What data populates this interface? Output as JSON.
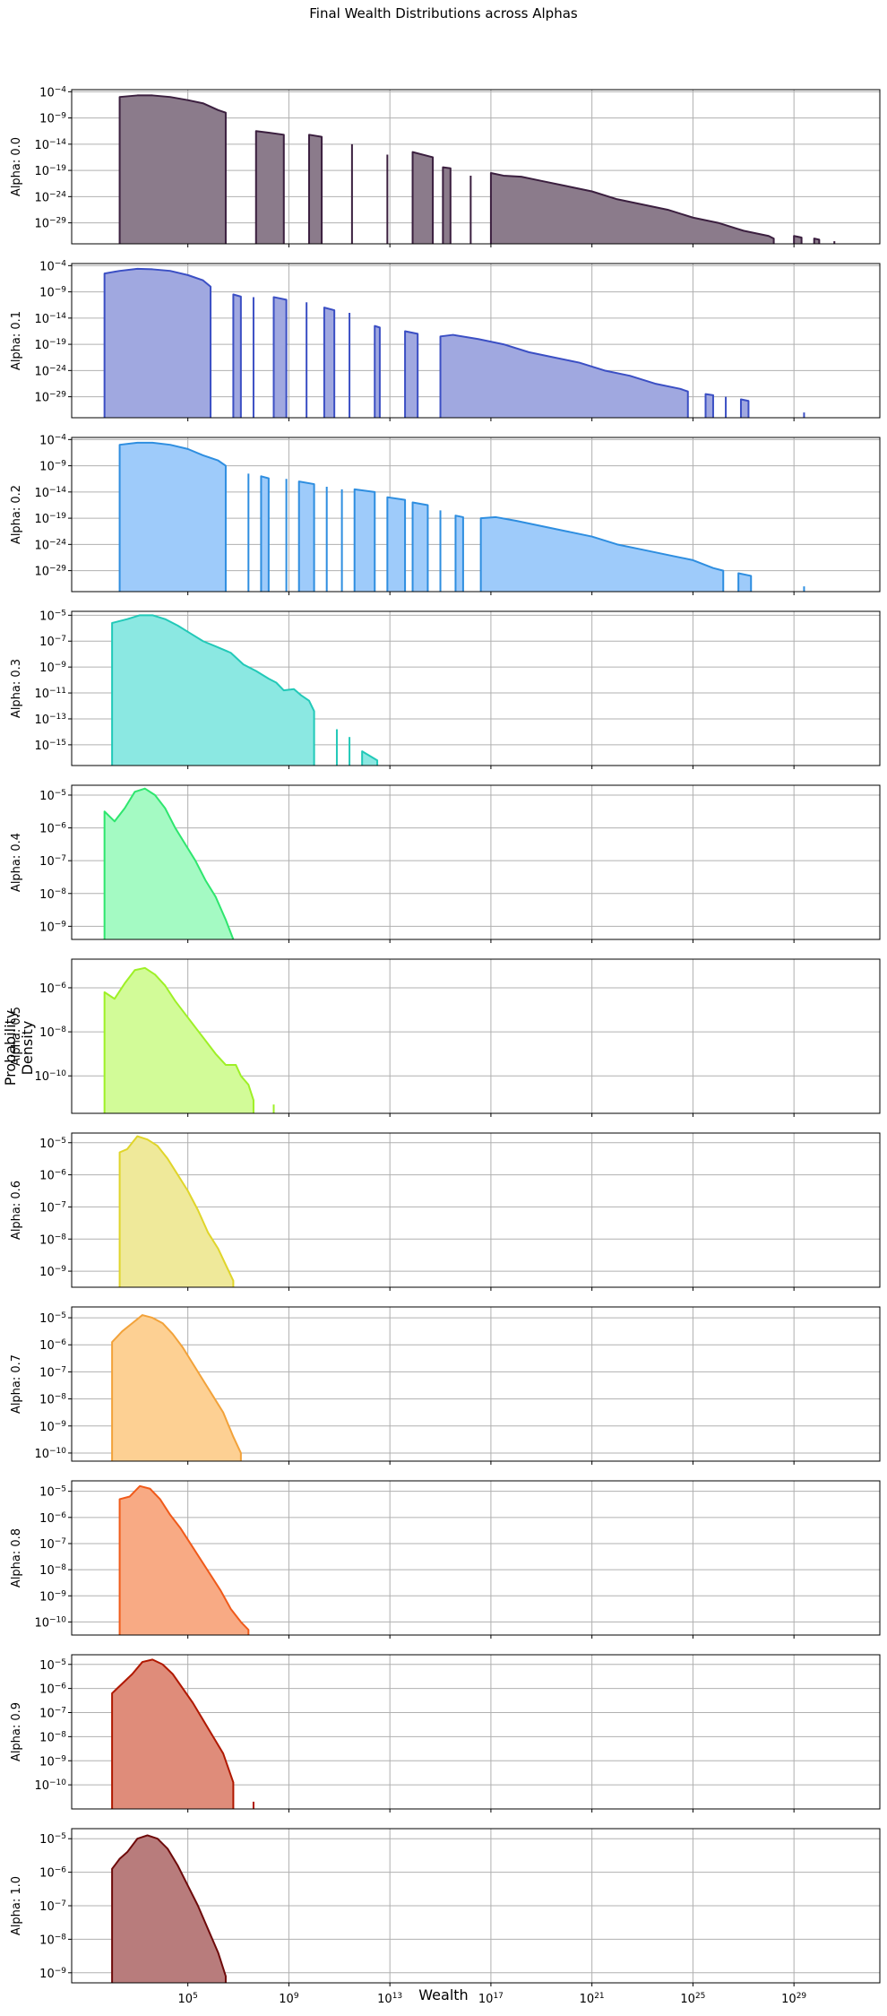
{
  "figure": {
    "title": "Final Wealth Distributions across Alphas",
    "xlabel": "Wealth",
    "ylabel": "Probability Density"
  },
  "chart_data": {
    "type": "area",
    "x_scale": "log",
    "y_scale": "log",
    "grid": true,
    "xlim_log10": [
      0.4,
      32.4
    ],
    "x_ticks": [
      {
        "exp": 5,
        "label": "10^5"
      },
      {
        "exp": 9,
        "label": "10^9"
      },
      {
        "exp": 13,
        "label": "10^13"
      },
      {
        "exp": 17,
        "label": "10^17"
      },
      {
        "exp": 21,
        "label": "10^21"
      },
      {
        "exp": 25,
        "label": "10^25"
      },
      {
        "exp": 29,
        "label": "10^29"
      }
    ],
    "panels": [
      {
        "label": "Alphα: 0.0",
        "ylabel": "Alpha: 0.0",
        "color": "#3b1f3f",
        "fill": "#8b7b8b",
        "ylim_log10": [
          -33,
          -3.6
        ],
        "y_ticks": [
          -4,
          -9,
          -14,
          -19,
          -24,
          -29
        ],
        "segments": [
          {
            "x": [
              2.3,
              3.0,
              3.6,
              4.3,
              5.0,
              5.6,
              6.2,
              6.5
            ],
            "y": [
              -5.0,
              -4.7,
              -4.7,
              -5.0,
              -5.6,
              -6.2,
              -7.5,
              -8.0
            ]
          },
          {
            "x": [
              7.7,
              8.2,
              8.8
            ],
            "y": [
              -11.5,
              -11.8,
              -12.2
            ]
          },
          {
            "x": [
              9.8,
              10.3
            ],
            "y": [
              -12.2,
              -12.6
            ]
          },
          {
            "x": [
              11.5
            ],
            "y": [
              -14.0
            ]
          },
          {
            "x": [
              12.9
            ],
            "y": [
              -16.0
            ]
          },
          {
            "x": [
              13.9,
              14.7
            ],
            "y": [
              -15.5,
              -16.5
            ]
          },
          {
            "x": [
              15.1,
              15.4
            ],
            "y": [
              -18.4,
              -18.6
            ]
          },
          {
            "x": [
              16.2
            ],
            "y": [
              -20.0
            ]
          },
          {
            "x": [
              17.0,
              17.5,
              18.2,
              19.0,
              20.0,
              21.0,
              22.0,
              23.0,
              24.0,
              25.0,
              26.0,
              27.0,
              28.0,
              28.2
            ],
            "y": [
              -19.5,
              -20.0,
              -20.2,
              -21.0,
              -22.0,
              -23.0,
              -24.5,
              -25.5,
              -26.5,
              -28.0,
              -29.0,
              -30.5,
              -31.5,
              -32.0
            ]
          },
          {
            "x": [
              29.0,
              29.3
            ],
            "y": [
              -31.5,
              -31.8
            ]
          },
          {
            "x": [
              29.8,
              30.0
            ],
            "y": [
              -32.0,
              -32.2
            ]
          },
          {
            "x": [
              30.6
            ],
            "y": [
              -32.5
            ]
          }
        ]
      },
      {
        "label": "Alpha: 0.1",
        "ylabel": "Alpha: 0.1",
        "color": "#3b4fc4",
        "fill": "#a0a8e0",
        "ylim_log10": [
          -33,
          -3.6
        ],
        "y_ticks": [
          -4,
          -9,
          -14,
          -19,
          -24,
          -29
        ],
        "segments": [
          {
            "x": [
              1.7,
              2.3,
              3.0,
              3.6,
              4.3,
              5.0,
              5.6,
              5.9
            ],
            "y": [
              -5.5,
              -5.0,
              -4.6,
              -4.7,
              -5.0,
              -5.8,
              -6.8,
              -8.0
            ]
          },
          {
            "x": [
              6.8,
              7.1
            ],
            "y": [
              -9.5,
              -9.9
            ]
          },
          {
            "x": [
              7.6
            ],
            "y": [
              -10.0
            ]
          },
          {
            "x": [
              8.4,
              8.9
            ],
            "y": [
              -10.0,
              -10.5
            ]
          },
          {
            "x": [
              9.7
            ],
            "y": [
              -11.0
            ]
          },
          {
            "x": [
              10.4,
              10.8
            ],
            "y": [
              -12.0,
              -12.5
            ]
          },
          {
            "x": [
              11.4
            ],
            "y": [
              -13.0
            ]
          },
          {
            "x": [
              12.4,
              12.6
            ],
            "y": [
              -15.5,
              -15.8
            ]
          },
          {
            "x": [
              13.6,
              14.1
            ],
            "y": [
              -16.5,
              -17.0
            ]
          },
          {
            "x": [
              15.0,
              15.5,
              16.5,
              17.5,
              18.5,
              19.5,
              20.5,
              21.5,
              22.5,
              23.5,
              24.5,
              24.8
            ],
            "y": [
              -17.5,
              -17.2,
              -18.0,
              -19.0,
              -20.5,
              -21.5,
              -22.5,
              -24.0,
              -25.0,
              -26.5,
              -27.5,
              -28.0
            ]
          },
          {
            "x": [
              25.5,
              25.8
            ],
            "y": [
              -28.5,
              -28.7
            ]
          },
          {
            "x": [
              26.3
            ],
            "y": [
              -29.0
            ]
          },
          {
            "x": [
              26.9,
              27.2
            ],
            "y": [
              -29.5,
              -29.8
            ]
          },
          {
            "x": [
              29.4
            ],
            "y": [
              -32.0
            ]
          }
        ]
      },
      {
        "label": "Alpha: 0.2",
        "ylabel": "Alpha: 0.2",
        "color": "#2e8ee0",
        "fill": "#9ecbfa",
        "ylim_log10": [
          -33,
          -3.6
        ],
        "y_ticks": [
          -4,
          -9,
          -14,
          -19,
          -24,
          -29
        ],
        "segments": [
          {
            "x": [
              2.3,
              3.0,
              3.6,
              4.3,
              5.0,
              5.6,
              6.2,
              6.5
            ],
            "y": [
              -5.0,
              -4.6,
              -4.6,
              -5.0,
              -5.8,
              -7.0,
              -8.0,
              -9.0
            ]
          },
          {
            "x": [
              7.4
            ],
            "y": [
              -10.5
            ]
          },
          {
            "x": [
              7.9,
              8.2
            ],
            "y": [
              -11.0,
              -11.4
            ]
          },
          {
            "x": [
              8.9
            ],
            "y": [
              -11.5
            ]
          },
          {
            "x": [
              9.4,
              10.0
            ],
            "y": [
              -12.0,
              -12.5
            ]
          },
          {
            "x": [
              10.5
            ],
            "y": [
              -13.0
            ]
          },
          {
            "x": [
              11.1
            ],
            "y": [
              -13.5
            ]
          },
          {
            "x": [
              11.6,
              12.4
            ],
            "y": [
              -13.5,
              -14.0
            ]
          },
          {
            "x": [
              12.9,
              13.6
            ],
            "y": [
              -15.0,
              -15.5
            ]
          },
          {
            "x": [
              13.9,
              14.5
            ],
            "y": [
              -16.0,
              -16.5
            ]
          },
          {
            "x": [
              15.0
            ],
            "y": [
              -17.5
            ]
          },
          {
            "x": [
              15.6,
              15.9
            ],
            "y": [
              -18.5,
              -18.8
            ]
          },
          {
            "x": [
              16.6,
              17.2,
              18.0,
              19.0,
              20.0,
              21.0,
              22.0,
              23.0,
              24.0,
              25.0,
              25.8,
              26.2
            ],
            "y": [
              -19.0,
              -18.8,
              -19.5,
              -20.5,
              -21.5,
              -22.5,
              -24.0,
              -25.0,
              -26.0,
              -27.0,
              -28.5,
              -29.0
            ]
          },
          {
            "x": [
              26.8,
              27.3
            ],
            "y": [
              -29.5,
              -30.0
            ]
          },
          {
            "x": [
              29.4
            ],
            "y": [
              -32.0
            ]
          }
        ]
      },
      {
        "label": "Alpha: 0.3",
        "ylabel": "Alpha: 0.3",
        "color": "#22c9b8",
        "fill": "#8be8e2",
        "ylim_log10": [
          -16.6,
          -4.7
        ],
        "y_ticks": [
          -5,
          -7,
          -9,
          -11,
          -13,
          -15
        ],
        "segments": [
          {
            "x": [
              2.0,
              2.6,
              3.1,
              3.6,
              4.1,
              4.6,
              5.1,
              5.6,
              6.1,
              6.7,
              7.2,
              7.7,
              8.2,
              8.5,
              8.8,
              9.2,
              9.5,
              9.8,
              10.0
            ],
            "y": [
              -5.6,
              -5.3,
              -5.0,
              -5.0,
              -5.3,
              -5.8,
              -6.4,
              -7.0,
              -7.4,
              -7.9,
              -8.8,
              -9.3,
              -9.9,
              -10.2,
              -10.8,
              -10.7,
              -11.2,
              -11.6,
              -12.4
            ]
          },
          {
            "x": [
              10.9
            ],
            "y": [
              -13.8
            ]
          },
          {
            "x": [
              11.4
            ],
            "y": [
              -14.4
            ]
          },
          {
            "x": [
              11.9,
              12.5
            ],
            "y": [
              -15.5,
              -16.2
            ]
          }
        ]
      },
      {
        "label": "Alpha: 0.4",
        "ylabel": "Alpha: 0.4",
        "color": "#2ee66e",
        "fill": "#a4fac3",
        "ylim_log10": [
          -9.4,
          -4.7
        ],
        "y_ticks": [
          -5,
          -6,
          -7,
          -8,
          -9
        ],
        "segments": [
          {
            "x": [
              1.7,
              2.1,
              2.5,
              2.9,
              3.3,
              3.7,
              4.1,
              4.5,
              4.9,
              5.3,
              5.7,
              6.1,
              6.5,
              6.8
            ],
            "y": [
              -5.5,
              -5.8,
              -5.4,
              -4.9,
              -4.8,
              -5.0,
              -5.4,
              -6.0,
              -6.5,
              -7.0,
              -7.6,
              -8.1,
              -8.8,
              -9.4
            ]
          }
        ]
      },
      {
        "label": "Alpha: 0.5",
        "ylabel": "Alpha: 0.5",
        "color": "#9ef026",
        "fill": "#d2fb98",
        "ylim_log10": [
          -11.7,
          -4.7
        ],
        "y_ticks": [
          -6,
          -8,
          -10
        ],
        "segments": [
          {
            "x": [
              1.7,
              2.1,
              2.5,
              2.9,
              3.3,
              3.7,
              4.1,
              4.5,
              4.9,
              5.3,
              5.7,
              6.1,
              6.5,
              6.9,
              7.1,
              7.4,
              7.6
            ],
            "y": [
              -6.2,
              -6.5,
              -5.8,
              -5.2,
              -5.1,
              -5.4,
              -5.9,
              -6.6,
              -7.2,
              -7.8,
              -8.4,
              -9.0,
              -9.5,
              -9.5,
              -10.0,
              -10.4,
              -11.1
            ]
          },
          {
            "x": [
              8.4
            ],
            "y": [
              -11.3
            ]
          }
        ]
      },
      {
        "label": "Alpha: 0.6",
        "ylabel": "Alpha: 0.6",
        "color": "#e0d52a",
        "fill": "#efe99a",
        "ylim_log10": [
          -9.5,
          -4.7
        ],
        "y_ticks": [
          -5,
          -6,
          -7,
          -8,
          -9
        ],
        "segments": [
          {
            "x": [
              2.3,
              2.6,
              3.0,
              3.4,
              3.8,
              4.2,
              4.6,
              5.0,
              5.4,
              5.8,
              6.2,
              6.5,
              6.8
            ],
            "y": [
              -5.3,
              -5.2,
              -4.8,
              -4.9,
              -5.1,
              -5.5,
              -6.0,
              -6.5,
              -7.1,
              -7.8,
              -8.3,
              -8.8,
              -9.3
            ]
          }
        ]
      },
      {
        "label": "Alpha: 0.7",
        "ylabel": "Alpha: 0.7",
        "color": "#f2a23a",
        "fill": "#fdd093",
        "ylim_log10": [
          -10.3,
          -4.6
        ],
        "y_ticks": [
          -5,
          -6,
          -7,
          -8,
          -9,
          -10
        ],
        "segments": [
          {
            "x": [
              2.0,
              2.4,
              2.8,
              3.2,
              3.6,
              4.0,
              4.4,
              4.8,
              5.2,
              5.6,
              6.0,
              6.4,
              6.8,
              7.1
            ],
            "y": [
              -5.9,
              -5.5,
              -5.2,
              -4.9,
              -5.0,
              -5.2,
              -5.6,
              -6.1,
              -6.7,
              -7.3,
              -7.9,
              -8.5,
              -9.4,
              -10.0
            ]
          }
        ]
      },
      {
        "label": "Alpha: 0.8",
        "ylabel": "Alpha: 0.8",
        "color": "#f05a1a",
        "fill": "#f8aa84",
        "ylim_log10": [
          -10.5,
          -4.6
        ],
        "y_ticks": [
          -5,
          -6,
          -7,
          -8,
          -9,
          -10
        ],
        "segments": [
          {
            "x": [
              2.3,
              2.7,
              3.1,
              3.5,
              3.9,
              4.3,
              4.7,
              5.1,
              5.5,
              5.9,
              6.3,
              6.7,
              7.1,
              7.4
            ],
            "y": [
              -5.3,
              -5.2,
              -4.8,
              -4.9,
              -5.3,
              -5.9,
              -6.4,
              -7.0,
              -7.6,
              -8.2,
              -8.8,
              -9.5,
              -10.0,
              -10.3
            ]
          }
        ]
      },
      {
        "label": "Alpha: 0.9",
        "ylabel": "Alpha: 0.9",
        "color": "#b01800",
        "fill": "#df8c7a",
        "ylim_log10": [
          -11.0,
          -4.6
        ],
        "y_ticks": [
          -5,
          -6,
          -7,
          -8,
          -9,
          -10
        ],
        "segments": [
          {
            "x": [
              2.0,
              2.4,
              2.8,
              3.2,
              3.6,
              4.0,
              4.4,
              4.8,
              5.2,
              5.6,
              6.0,
              6.4,
              6.8
            ],
            "y": [
              -6.2,
              -5.8,
              -5.4,
              -4.9,
              -4.8,
              -5.0,
              -5.4,
              -6.0,
              -6.6,
              -7.3,
              -8.0,
              -8.7,
              -9.9
            ]
          },
          {
            "x": [
              7.6
            ],
            "y": [
              -10.7
            ]
          }
        ]
      },
      {
        "label": "Alpha: 1.0",
        "ylabel": "Alpha: 1.0",
        "color": "#6e0a0a",
        "fill": "#b87c7c",
        "ylim_log10": [
          -9.3,
          -4.7
        ],
        "y_ticks": [
          -5,
          -6,
          -7,
          -8,
          -9
        ],
        "segments": [
          {
            "x": [
              2.0,
              2.3,
              2.6,
              3.0,
              3.4,
              3.8,
              4.2,
              4.6,
              5.0,
              5.4,
              5.8,
              6.2,
              6.5
            ],
            "y": [
              -5.9,
              -5.6,
              -5.4,
              -5.0,
              -4.9,
              -5.0,
              -5.3,
              -5.8,
              -6.4,
              -7.0,
              -7.7,
              -8.4,
              -9.1
            ]
          }
        ]
      }
    ]
  }
}
